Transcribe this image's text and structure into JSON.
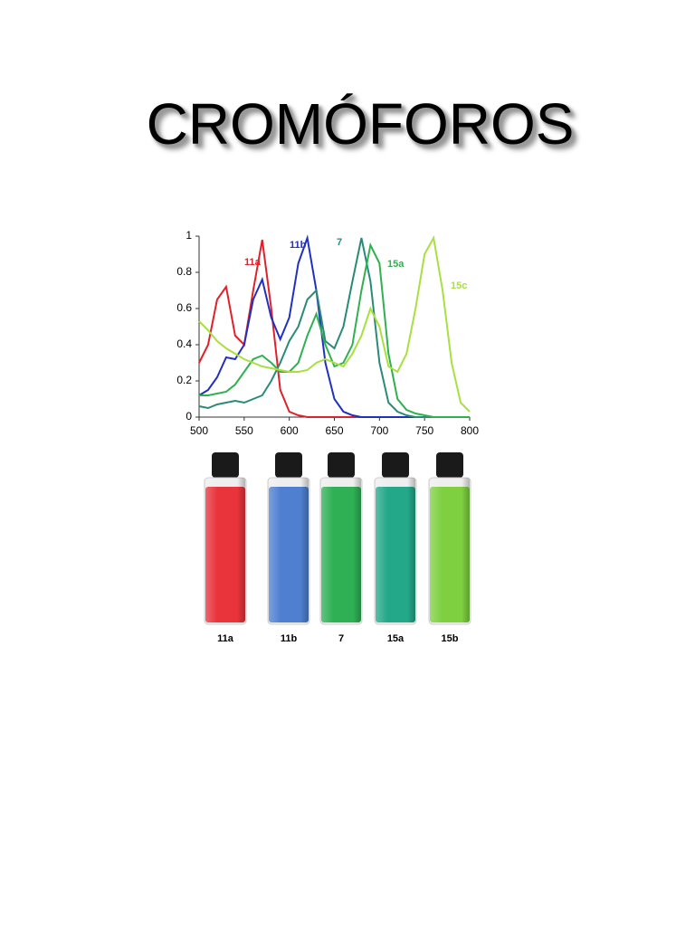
{
  "title": "CROMÓFOROS",
  "chart_data": {
    "type": "line",
    "x": [
      500,
      510,
      520,
      530,
      540,
      550,
      560,
      570,
      580,
      590,
      600,
      610,
      620,
      630,
      640,
      650,
      660,
      670,
      680,
      690,
      700,
      710,
      720,
      730,
      740,
      750,
      760,
      770,
      780,
      790,
      800
    ],
    "series": [
      {
        "name": "11a",
        "color": "#e0202a",
        "values": [
          0.3,
          0.4,
          0.65,
          0.72,
          0.45,
          0.4,
          0.7,
          0.98,
          0.6,
          0.15,
          0.03,
          0.01,
          0,
          0,
          0,
          0,
          0,
          0,
          0,
          0,
          0,
          0,
          0,
          0,
          0,
          0,
          0,
          0,
          0,
          0,
          0
        ]
      },
      {
        "name": "11b",
        "color": "#2030c0",
        "values": [
          0.12,
          0.15,
          0.22,
          0.33,
          0.32,
          0.4,
          0.65,
          0.76,
          0.55,
          0.43,
          0.55,
          0.85,
          0.99,
          0.7,
          0.3,
          0.1,
          0.03,
          0.01,
          0,
          0,
          0,
          0,
          0,
          0,
          0,
          0,
          0,
          0,
          0,
          0,
          0
        ]
      },
      {
        "name": "7",
        "color": "#2a8a78",
        "values": [
          0.06,
          0.05,
          0.07,
          0.08,
          0.09,
          0.08,
          0.1,
          0.12,
          0.2,
          0.3,
          0.42,
          0.5,
          0.65,
          0.7,
          0.42,
          0.38,
          0.5,
          0.75,
          0.99,
          0.75,
          0.3,
          0.08,
          0.03,
          0.01,
          0,
          0,
          0,
          0,
          0,
          0,
          0
        ]
      },
      {
        "name": "15a",
        "color": "#30b050",
        "values": [
          0.12,
          0.12,
          0.13,
          0.14,
          0.18,
          0.25,
          0.32,
          0.34,
          0.3,
          0.25,
          0.25,
          0.3,
          0.45,
          0.57,
          0.4,
          0.28,
          0.3,
          0.4,
          0.7,
          0.95,
          0.85,
          0.35,
          0.1,
          0.04,
          0.02,
          0.01,
          0,
          0,
          0,
          0,
          0
        ]
      },
      {
        "name": "15c",
        "color": "#a8e040",
        "values": [
          0.53,
          0.48,
          0.42,
          0.38,
          0.35,
          0.32,
          0.3,
          0.28,
          0.27,
          0.26,
          0.25,
          0.25,
          0.26,
          0.3,
          0.32,
          0.3,
          0.28,
          0.35,
          0.45,
          0.6,
          0.5,
          0.28,
          0.25,
          0.35,
          0.6,
          0.9,
          0.99,
          0.7,
          0.3,
          0.08,
          0.03
        ]
      }
    ],
    "xlim": [
      500,
      800
    ],
    "xticks": [
      500,
      550,
      600,
      650,
      700,
      750,
      800
    ],
    "ylim": [
      0,
      1
    ],
    "yticks": [
      0,
      0.2,
      0.4,
      0.6,
      0.8,
      1
    ]
  },
  "vials": {
    "labels": [
      "11a",
      "11b",
      "7",
      "15a",
      "15b"
    ]
  }
}
